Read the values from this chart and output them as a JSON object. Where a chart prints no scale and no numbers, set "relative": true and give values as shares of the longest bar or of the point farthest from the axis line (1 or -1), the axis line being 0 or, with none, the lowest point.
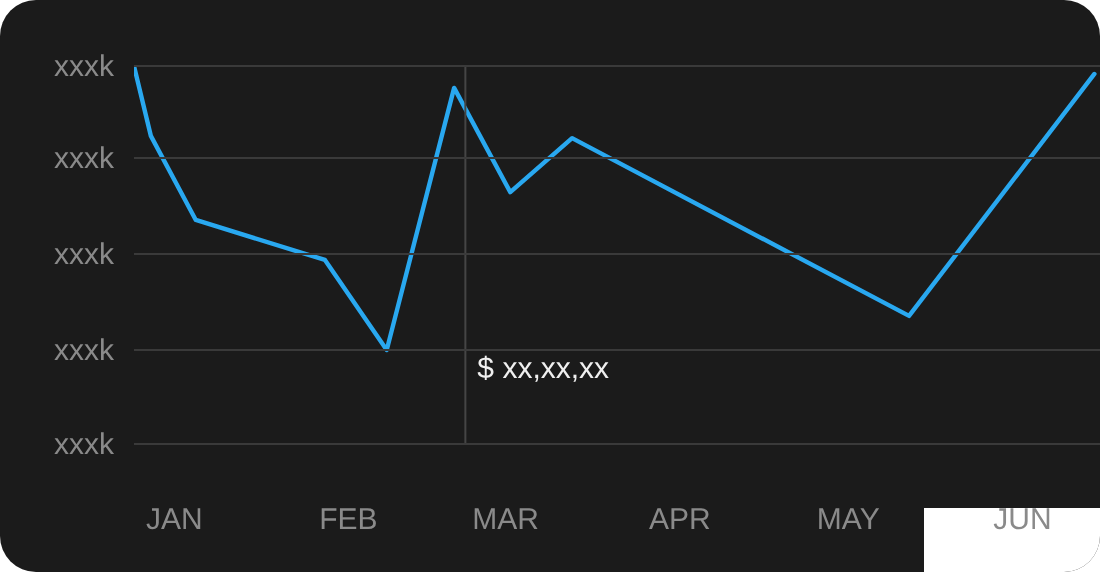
{
  "chart_data": {
    "type": "line",
    "relative": true,
    "x": [
      "--01-08",
      "--01-11",
      "--01-19",
      "--02-11",
      "--02-22",
      "--03-06",
      "--03-16",
      "--03-27",
      "--05-26",
      "--06-28"
    ],
    "series": [
      {
        "color": "#29a8f0",
        "values": [
          1,
          0.754,
          0.458,
          0.317,
          0,
          0.923,
          0.556,
          0.746,
          0.12,
          0.972
        ]
      }
    ],
    "xlim": [
      "--01-08",
      "--06-29"
    ],
    "xticks": [
      {
        "value": "--01-15",
        "label": "JAN"
      },
      {
        "value": "--02-15",
        "label": "FEB"
      },
      {
        "value": "--03-15",
        "label": "MAR"
      },
      {
        "value": "--04-15",
        "label": "APR"
      },
      {
        "value": "--05-15",
        "label": "MAY"
      },
      {
        "value": "--06-15",
        "label": "JUN"
      }
    ],
    "marker": "none",
    "line_style": "solid",
    "legend": false,
    "ref_lines": [
      {
        "axis": "x",
        "value": "--03-08",
        "color": "#454545"
      },
      {
        "axis": "y",
        "value": 1,
        "label": "xxxk",
        "color": "#3a3a3a"
      },
      {
        "axis": "y",
        "value": 0.676,
        "label": "xxxk",
        "color": "#3a3a3a"
      },
      {
        "axis": "y",
        "value": 0.338,
        "label": "xxxk",
        "color": "#3a3a3a"
      },
      {
        "axis": "y",
        "value": 0,
        "label": "xxxk",
        "color": "#3a3a3a"
      },
      {
        "axis": "y",
        "value": -0.331,
        "label": "xxxk",
        "color": "#3a3a3a"
      }
    ],
    "annotations": [
      {
        "text": "$ xx,xx,xx",
        "x": "--03-08",
        "y": -0.063
      }
    ]
  }
}
